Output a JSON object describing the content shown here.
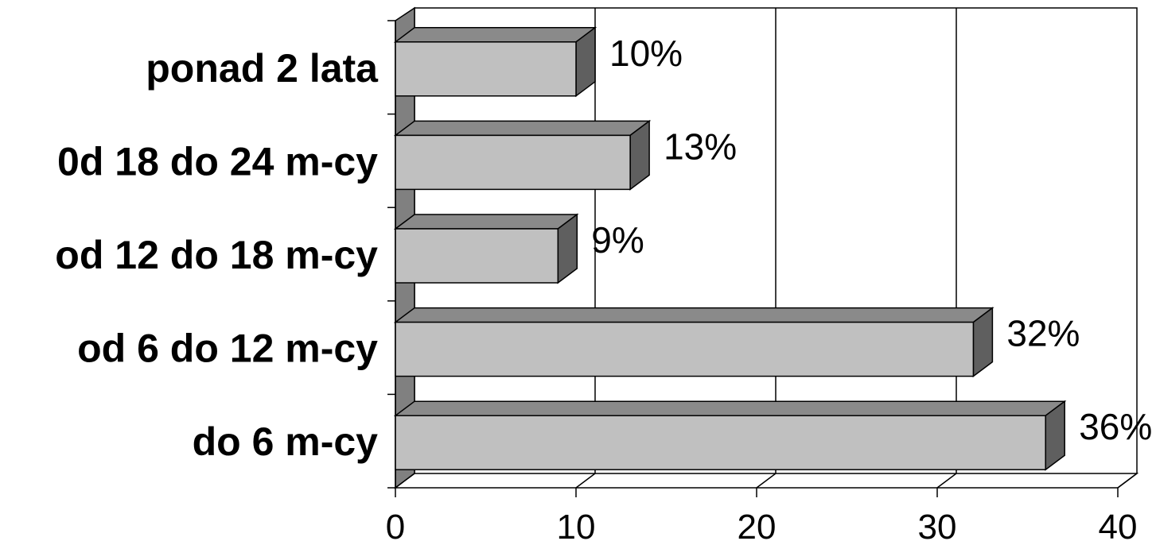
{
  "chart_data": {
    "type": "bar",
    "orientation": "horizontal",
    "three_d": true,
    "categories": [
      "ponad 2 lata",
      "0d 18 do 24 m-cy",
      "od 12 do 18 m-cy",
      "od 6 do 12 m-cy",
      "do 6 m-cy"
    ],
    "values": [
      10,
      13,
      9,
      32,
      36
    ],
    "data_labels": [
      "10%",
      "13%",
      "9%",
      "32%",
      "36%"
    ],
    "xlim": [
      0,
      40
    ],
    "x_ticks": [
      "0",
      "10",
      "20",
      "30",
      "40"
    ],
    "grid": "vertical",
    "legend": "none",
    "colors": {
      "bar_front": "#c0c0c0",
      "bar_top": "#8a8a8a",
      "bar_side": "#5f5f5f",
      "wall": "#808080",
      "grid": "#000000"
    }
  }
}
